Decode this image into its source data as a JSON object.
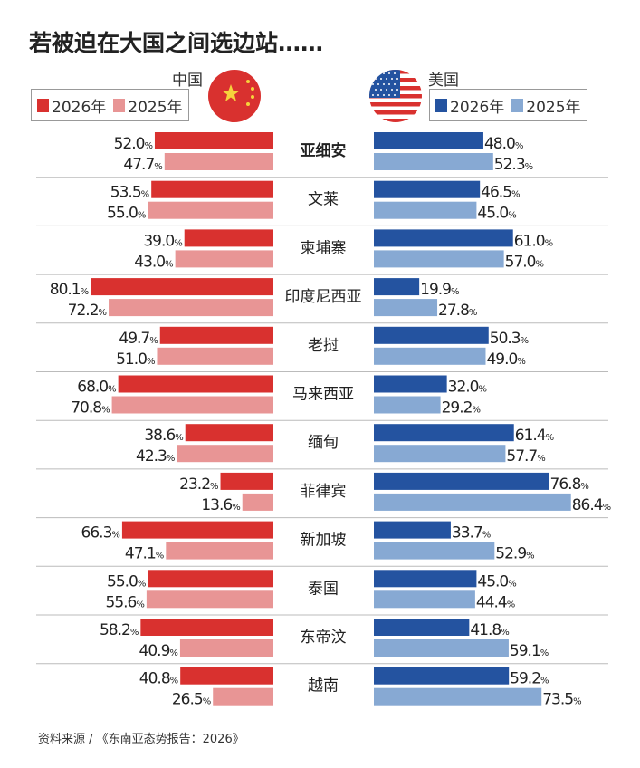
{
  "title": "若被迫在大国之间选边站……",
  "source": "资料来源 / 《东南亚态势报告：2026》",
  "colors": {
    "china_2026": "#d9312f",
    "china_2025": "#e89595",
    "us_2026": "#2453a0",
    "us_2025": "#87a9d3"
  },
  "china": {
    "label": "中国",
    "legend": [
      "2026年",
      "2025年"
    ],
    "flag": "china-flag"
  },
  "us": {
    "label": "美国",
    "legend": [
      "2026年",
      "2025年"
    ],
    "flag": "us-flag"
  },
  "chart_data": {
    "type": "bar",
    "orientation": "horizontal-diverging",
    "unit": "%",
    "categories": [
      "亚细安",
      "文莱",
      "柬埔寨",
      "印度尼西亚",
      "老挝",
      "马来西亚",
      "缅甸",
      "菲律宾",
      "新加坡",
      "泰国",
      "东帝汶",
      "越南"
    ],
    "series": [
      {
        "name": "中国 2026年",
        "side": "left",
        "values": [
          52.0,
          53.5,
          39.0,
          80.1,
          49.7,
          68.0,
          38.6,
          23.2,
          66.3,
          55.0,
          58.2,
          40.8
        ]
      },
      {
        "name": "中国 2025年",
        "side": "left",
        "values": [
          47.7,
          55.0,
          43.0,
          72.2,
          51.0,
          70.8,
          42.3,
          13.6,
          47.1,
          55.6,
          40.9,
          26.5
        ]
      },
      {
        "name": "美国 2026年",
        "side": "right",
        "values": [
          48.0,
          46.5,
          61.0,
          19.9,
          50.3,
          32.0,
          61.4,
          76.8,
          33.7,
          45.0,
          41.8,
          59.2
        ]
      },
      {
        "name": "美国 2025年",
        "side": "right",
        "values": [
          52.3,
          45.0,
          57.0,
          27.8,
          49.0,
          29.2,
          57.7,
          86.4,
          52.9,
          44.4,
          59.1,
          73.5
        ]
      }
    ]
  }
}
